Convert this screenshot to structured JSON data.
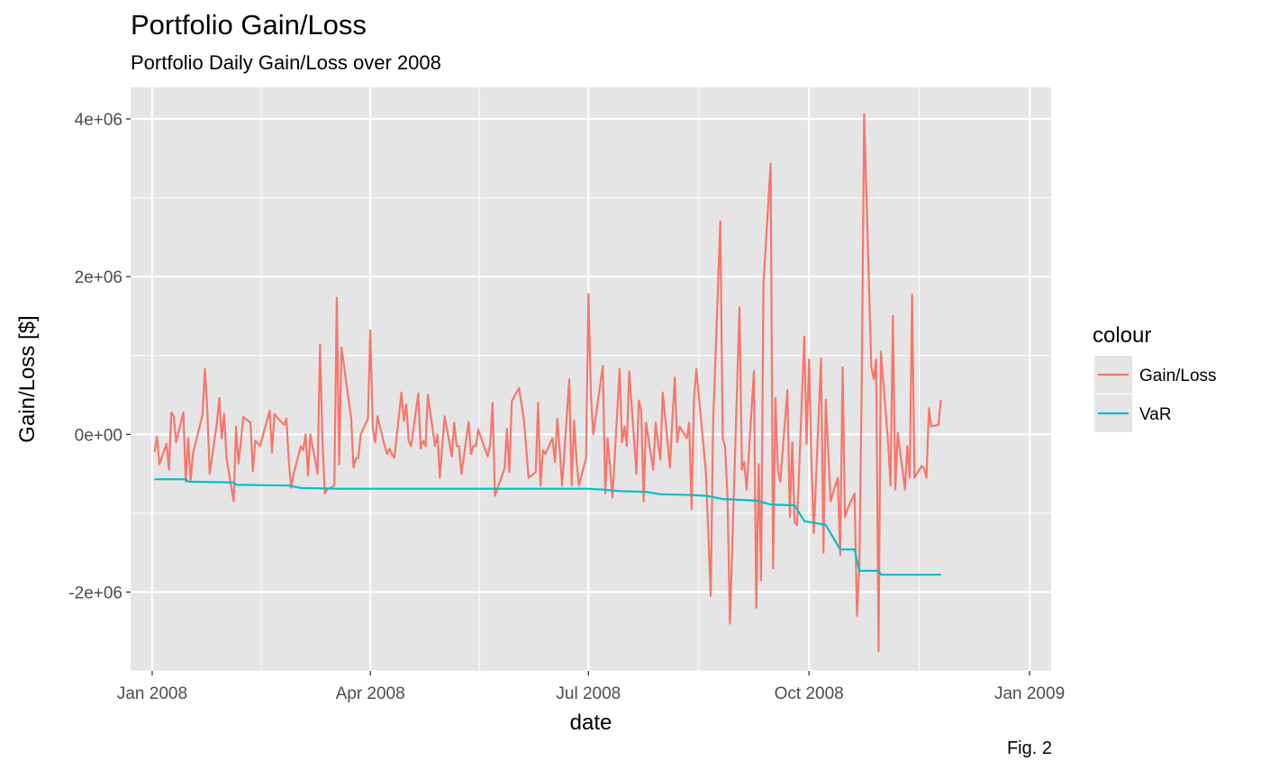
{
  "title": "Portfolio Gain/Loss",
  "subtitle": "Portfolio Daily Gain/Loss over 2008",
  "caption": "Fig. 2",
  "colors": {
    "gain_loss": "#F8766D",
    "var": "#00BFC4",
    "panel": "#E5E5E5",
    "grid": "#FFFFFF"
  },
  "chart_data": {
    "type": "line",
    "xlabel": "date",
    "ylabel": "Gain/Loss [$]",
    "x_axis_type": "date",
    "xlim": [
      "2007-12-23",
      "2009-01-10"
    ],
    "ylim": [
      -3000000,
      4400000
    ],
    "x_ticks": [
      {
        "date": "2008-01-01",
        "label": "Jan 2008"
      },
      {
        "date": "2008-04-01",
        "label": "Apr 2008"
      },
      {
        "date": "2008-07-01",
        "label": "Jul 2008"
      },
      {
        "date": "2008-10-01",
        "label": "Oct 2008"
      },
      {
        "date": "2009-01-01",
        "label": "Jan 2009"
      }
    ],
    "y_ticks": [
      {
        "value": -2000000,
        "label": "-2e+06"
      },
      {
        "value": 0,
        "label": "0e+00"
      },
      {
        "value": 2000000,
        "label": "2e+06"
      },
      {
        "value": 4000000,
        "label": "4e+06"
      }
    ],
    "grid": true,
    "legend": {
      "title": "colour",
      "position": "right"
    },
    "series": [
      {
        "name": "Gain/Loss",
        "color": "#F8766D",
        "points": [
          [
            "2008-01-02",
            -220000
          ],
          [
            "2008-01-03",
            -30000
          ],
          [
            "2008-01-04",
            -380000
          ],
          [
            "2008-01-07",
            -120000
          ],
          [
            "2008-01-08",
            -450000
          ],
          [
            "2008-01-09",
            280000
          ],
          [
            "2008-01-10",
            230000
          ],
          [
            "2008-01-11",
            -100000
          ],
          [
            "2008-01-14",
            280000
          ],
          [
            "2008-01-15",
            -600000
          ],
          [
            "2008-01-16",
            -50000
          ],
          [
            "2008-01-17",
            -600000
          ],
          [
            "2008-01-18",
            -250000
          ],
          [
            "2008-01-22",
            250000
          ],
          [
            "2008-01-23",
            830000
          ],
          [
            "2008-01-24",
            300000
          ],
          [
            "2008-01-25",
            -500000
          ],
          [
            "2008-01-28",
            140000
          ],
          [
            "2008-01-29",
            460000
          ],
          [
            "2008-01-30",
            -50000
          ],
          [
            "2008-01-31",
            260000
          ],
          [
            "2008-02-01",
            -300000
          ],
          [
            "2008-02-04",
            -850000
          ],
          [
            "2008-02-05",
            100000
          ],
          [
            "2008-02-06",
            -370000
          ],
          [
            "2008-02-07",
            -100000
          ],
          [
            "2008-02-08",
            220000
          ],
          [
            "2008-02-11",
            150000
          ],
          [
            "2008-02-12",
            -470000
          ],
          [
            "2008-02-13",
            -80000
          ],
          [
            "2008-02-14",
            -110000
          ],
          [
            "2008-02-15",
            -150000
          ],
          [
            "2008-02-19",
            300000
          ],
          [
            "2008-02-20",
            -230000
          ],
          [
            "2008-02-21",
            260000
          ],
          [
            "2008-02-22",
            220000
          ],
          [
            "2008-02-25",
            120000
          ],
          [
            "2008-02-26",
            200000
          ],
          [
            "2008-02-27",
            -350000
          ],
          [
            "2008-02-28",
            -680000
          ],
          [
            "2008-02-29",
            -500000
          ],
          [
            "2008-03-03",
            -150000
          ],
          [
            "2008-03-04",
            -200000
          ],
          [
            "2008-03-05",
            0
          ],
          [
            "2008-03-06",
            -520000
          ],
          [
            "2008-03-07",
            0
          ],
          [
            "2008-03-10",
            -500000
          ],
          [
            "2008-03-11",
            1140000
          ],
          [
            "2008-03-12",
            -50000
          ],
          [
            "2008-03-13",
            -750000
          ],
          [
            "2008-03-14",
            -700000
          ],
          [
            "2008-03-17",
            -650000
          ],
          [
            "2008-03-18",
            1730000
          ],
          [
            "2008-03-19",
            -380000
          ],
          [
            "2008-03-20",
            1100000
          ],
          [
            "2008-03-24",
            200000
          ],
          [
            "2008-03-25",
            -420000
          ],
          [
            "2008-03-26",
            -300000
          ],
          [
            "2008-03-27",
            -300000
          ],
          [
            "2008-03-28",
            0
          ],
          [
            "2008-03-31",
            200000
          ],
          [
            "2008-04-01",
            1320000
          ],
          [
            "2008-04-02",
            80000
          ],
          [
            "2008-04-03",
            -100000
          ],
          [
            "2008-04-04",
            230000
          ],
          [
            "2008-04-07",
            -150000
          ],
          [
            "2008-04-08",
            -250000
          ],
          [
            "2008-04-09",
            -180000
          ],
          [
            "2008-04-10",
            -250000
          ],
          [
            "2008-04-11",
            -300000
          ],
          [
            "2008-04-14",
            530000
          ],
          [
            "2008-04-15",
            170000
          ],
          [
            "2008-04-16",
            380000
          ],
          [
            "2008-04-17",
            -80000
          ],
          [
            "2008-04-18",
            -150000
          ],
          [
            "2008-04-21",
            520000
          ],
          [
            "2008-04-22",
            -180000
          ],
          [
            "2008-04-23",
            -80000
          ],
          [
            "2008-04-24",
            -150000
          ],
          [
            "2008-04-25",
            500000
          ],
          [
            "2008-04-28",
            -150000
          ],
          [
            "2008-04-29",
            0
          ],
          [
            "2008-04-30",
            -550000
          ],
          [
            "2008-05-01",
            -150000
          ],
          [
            "2008-05-02",
            230000
          ],
          [
            "2008-05-05",
            -280000
          ],
          [
            "2008-05-06",
            150000
          ],
          [
            "2008-05-07",
            -150000
          ],
          [
            "2008-05-08",
            -150000
          ],
          [
            "2008-05-09",
            -500000
          ],
          [
            "2008-05-12",
            160000
          ],
          [
            "2008-05-13",
            -250000
          ],
          [
            "2008-05-14",
            -150000
          ],
          [
            "2008-05-15",
            -150000
          ],
          [
            "2008-05-16",
            60000
          ],
          [
            "2008-05-19",
            -200000
          ],
          [
            "2008-05-20",
            -280000
          ],
          [
            "2008-05-21",
            -120000
          ],
          [
            "2008-05-22",
            400000
          ],
          [
            "2008-05-23",
            -780000
          ],
          [
            "2008-05-27",
            -430000
          ],
          [
            "2008-05-28",
            70000
          ],
          [
            "2008-05-29",
            -480000
          ],
          [
            "2008-05-30",
            420000
          ],
          [
            "2008-06-02",
            590000
          ],
          [
            "2008-06-03",
            400000
          ],
          [
            "2008-06-04",
            200000
          ],
          [
            "2008-06-05",
            -150000
          ],
          [
            "2008-06-06",
            -550000
          ],
          [
            "2008-06-09",
            -480000
          ],
          [
            "2008-06-10",
            400000
          ],
          [
            "2008-06-11",
            -650000
          ],
          [
            "2008-06-12",
            -200000
          ],
          [
            "2008-06-13",
            -250000
          ],
          [
            "2008-06-16",
            -50000
          ],
          [
            "2008-06-17",
            -350000
          ],
          [
            "2008-06-18",
            200000
          ],
          [
            "2008-06-19",
            -200000
          ],
          [
            "2008-06-20",
            -650000
          ],
          [
            "2008-06-23",
            700000
          ],
          [
            "2008-06-24",
            -650000
          ],
          [
            "2008-06-25",
            170000
          ],
          [
            "2008-06-26",
            -320000
          ],
          [
            "2008-06-27",
            -650000
          ],
          [
            "2008-06-30",
            -300000
          ],
          [
            "2008-07-01",
            1780000
          ],
          [
            "2008-07-02",
            500000
          ],
          [
            "2008-07-03",
            0
          ],
          [
            "2008-07-07",
            870000
          ],
          [
            "2008-07-08",
            -750000
          ],
          [
            "2008-07-09",
            -50000
          ],
          [
            "2008-07-10",
            -420000
          ],
          [
            "2008-07-11",
            -800000
          ],
          [
            "2008-07-14",
            830000
          ],
          [
            "2008-07-15",
            -100000
          ],
          [
            "2008-07-16",
            100000
          ],
          [
            "2008-07-17",
            -150000
          ],
          [
            "2008-07-18",
            800000
          ],
          [
            "2008-07-21",
            -500000
          ],
          [
            "2008-07-22",
            430000
          ],
          [
            "2008-07-23",
            300000
          ],
          [
            "2008-07-24",
            -850000
          ],
          [
            "2008-07-25",
            150000
          ],
          [
            "2008-07-28",
            -450000
          ],
          [
            "2008-07-29",
            150000
          ],
          [
            "2008-07-30",
            -100000
          ],
          [
            "2008-07-31",
            -320000
          ],
          [
            "2008-08-01",
            530000
          ],
          [
            "2008-08-04",
            -420000
          ],
          [
            "2008-08-05",
            200000
          ],
          [
            "2008-08-06",
            720000
          ],
          [
            "2008-08-07",
            -100000
          ],
          [
            "2008-08-08",
            100000
          ],
          [
            "2008-08-11",
            -50000
          ],
          [
            "2008-08-12",
            150000
          ],
          [
            "2008-08-13",
            -950000
          ],
          [
            "2008-08-14",
            420000
          ],
          [
            "2008-08-15",
            830000
          ],
          [
            "2008-08-18",
            -150000
          ],
          [
            "2008-08-19",
            -500000
          ],
          [
            "2008-08-20",
            -1250000
          ],
          [
            "2008-08-21",
            -2050000
          ],
          [
            "2008-08-22",
            130000
          ],
          [
            "2008-08-25",
            2700000
          ],
          [
            "2008-08-26",
            -50000
          ],
          [
            "2008-08-27",
            -150000
          ],
          [
            "2008-08-28",
            -800000
          ],
          [
            "2008-08-29",
            -2400000
          ],
          [
            "2008-09-02",
            1610000
          ],
          [
            "2008-09-03",
            -450000
          ],
          [
            "2008-09-04",
            -350000
          ],
          [
            "2008-09-05",
            -700000
          ],
          [
            "2008-09-08",
            800000
          ],
          [
            "2008-09-09",
            -2200000
          ],
          [
            "2008-09-10",
            -380000
          ],
          [
            "2008-09-11",
            -1850000
          ],
          [
            "2008-09-12",
            1900000
          ],
          [
            "2008-09-15",
            3430000
          ],
          [
            "2008-09-16",
            -1700000
          ],
          [
            "2008-09-17",
            460000
          ],
          [
            "2008-09-18",
            -450000
          ],
          [
            "2008-09-19",
            -600000
          ],
          [
            "2008-09-22",
            560000
          ],
          [
            "2008-09-23",
            -1050000
          ],
          [
            "2008-09-24",
            -100000
          ],
          [
            "2008-09-25",
            -1120000
          ],
          [
            "2008-09-26",
            -1150000
          ],
          [
            "2008-09-29",
            1240000
          ],
          [
            "2008-09-30",
            -120000
          ],
          [
            "2008-10-01",
            950000
          ],
          [
            "2008-10-02",
            -350000
          ],
          [
            "2008-10-03",
            -1250000
          ],
          [
            "2008-10-06",
            960000
          ],
          [
            "2008-10-07",
            -1500000
          ],
          [
            "2008-10-08",
            440000
          ],
          [
            "2008-10-09",
            -200000
          ],
          [
            "2008-10-10",
            -850000
          ],
          [
            "2008-10-13",
            -550000
          ],
          [
            "2008-10-14",
            -1530000
          ],
          [
            "2008-10-15",
            850000
          ],
          [
            "2008-10-16",
            -1050000
          ],
          [
            "2008-10-17",
            -950000
          ],
          [
            "2008-10-20",
            -750000
          ],
          [
            "2008-10-21",
            -2300000
          ],
          [
            "2008-10-22",
            -1650000
          ],
          [
            "2008-10-23",
            600000
          ],
          [
            "2008-10-24",
            4060000
          ],
          [
            "2008-10-27",
            850000
          ],
          [
            "2008-10-28",
            700000
          ],
          [
            "2008-10-29",
            950000
          ],
          [
            "2008-10-30",
            -2750000
          ],
          [
            "2008-10-31",
            1050000
          ],
          [
            "2008-11-03",
            -100000
          ],
          [
            "2008-11-04",
            -650000
          ],
          [
            "2008-11-05",
            1500000
          ],
          [
            "2008-11-06",
            -700000
          ],
          [
            "2008-11-07",
            20000
          ],
          [
            "2008-11-10",
            -700000
          ],
          [
            "2008-11-11",
            -150000
          ],
          [
            "2008-11-12",
            -550000
          ],
          [
            "2008-11-13",
            1770000
          ],
          [
            "2008-11-14",
            -550000
          ],
          [
            "2008-11-17",
            -400000
          ],
          [
            "2008-11-18",
            -430000
          ],
          [
            "2008-11-19",
            -550000
          ],
          [
            "2008-11-20",
            330000
          ],
          [
            "2008-11-21",
            100000
          ],
          [
            "2008-11-24",
            120000
          ],
          [
            "2008-11-25",
            440000
          ]
        ]
      },
      {
        "name": "VaR",
        "color": "#00BFC4",
        "points": [
          [
            "2008-01-02",
            -570000
          ],
          [
            "2008-01-15",
            -570000
          ],
          [
            "2008-01-16",
            -600000
          ],
          [
            "2008-02-04",
            -610000
          ],
          [
            "2008-02-05",
            -640000
          ],
          [
            "2008-02-27",
            -650000
          ],
          [
            "2008-03-03",
            -680000
          ],
          [
            "2008-03-18",
            -690000
          ],
          [
            "2008-05-23",
            -690000
          ],
          [
            "2008-06-17",
            -690000
          ],
          [
            "2008-06-30",
            -690000
          ],
          [
            "2008-07-07",
            -700000
          ],
          [
            "2008-07-14",
            -720000
          ],
          [
            "2008-07-25",
            -730000
          ],
          [
            "2008-07-31",
            -760000
          ],
          [
            "2008-08-13",
            -770000
          ],
          [
            "2008-08-19",
            -780000
          ],
          [
            "2008-08-26",
            -820000
          ],
          [
            "2008-09-02",
            -830000
          ],
          [
            "2008-09-09",
            -840000
          ],
          [
            "2008-09-15",
            -890000
          ],
          [
            "2008-09-25",
            -900000
          ],
          [
            "2008-09-29",
            -1100000
          ],
          [
            "2008-10-03",
            -1120000
          ],
          [
            "2008-10-08",
            -1150000
          ],
          [
            "2008-10-14",
            -1460000
          ],
          [
            "2008-10-20",
            -1460000
          ],
          [
            "2008-10-22",
            -1730000
          ],
          [
            "2008-10-30",
            -1730000
          ],
          [
            "2008-10-31",
            -1780000
          ],
          [
            "2008-11-25",
            -1780000
          ]
        ]
      }
    ]
  }
}
